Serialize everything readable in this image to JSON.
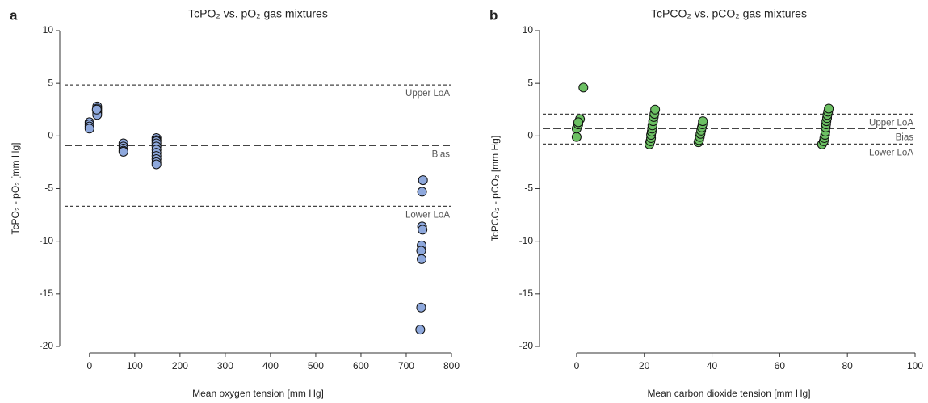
{
  "chart_data": [
    {
      "type": "scatter",
      "label": "a",
      "title": "TcPO₂ vs. pO₂ gas mixtures",
      "x_label": "Mean oxygen tension [mm Hg]",
      "y_label": "TcPO₂ - pO₂ [mm Hg]",
      "color": "#8ea8dc",
      "xlim": [
        -55,
        800
      ],
      "xticks": [
        0,
        100,
        200,
        300,
        400,
        500,
        600,
        700,
        800
      ],
      "ylim": [
        -20,
        10
      ],
      "yticks": [
        -20,
        -15,
        -10,
        -5,
        0,
        5,
        10
      ],
      "ref_lines": [
        {
          "label": "Upper LoA",
          "value": 4.85,
          "style": "dotted"
        },
        {
          "label": "Bias",
          "value": -0.92,
          "style": "dashed"
        },
        {
          "label": "Lower LoA",
          "value": -6.68,
          "style": "dotted"
        }
      ],
      "x": [
        0,
        0,
        0,
        0,
        17,
        17,
        17,
        17,
        17,
        16,
        75,
        75,
        75,
        75,
        75,
        148,
        148,
        148,
        148,
        148,
        148,
        148,
        148,
        148,
        148,
        148,
        737,
        735,
        735,
        736,
        734,
        733,
        734,
        733,
        731
      ],
      "values": [
        1.3,
        1.1,
        0.9,
        0.7,
        2.8,
        2.6,
        2.4,
        2.2,
        2.0,
        2.5,
        -0.7,
        -1.0,
        -1.2,
        -1.4,
        -1.5,
        -0.2,
        -0.4,
        -0.5,
        -0.7,
        -1.0,
        -1.3,
        -1.6,
        -1.9,
        -2.2,
        -2.5,
        -2.7,
        -4.2,
        -5.3,
        -8.6,
        -8.9,
        -10.4,
        -10.9,
        -11.7,
        -16.3,
        -18.4
      ]
    },
    {
      "type": "scatter",
      "label": "b",
      "title": "TcPCO₂ vs. pCO₂ gas mixtures",
      "x_label": "Mean carbon dioxide tension [mm Hg]",
      "y_label": "TcPCO₂ - pCO₂ [mm Hg]",
      "color": "#6cc063",
      "xlim": [
        -10,
        100
      ],
      "xticks": [
        0,
        20,
        40,
        60,
        80,
        100
      ],
      "ylim": [
        -20,
        10
      ],
      "yticks": [
        -20,
        -15,
        -10,
        -5,
        0,
        5,
        10
      ],
      "ref_lines": [
        {
          "label": "Upper LoA",
          "value": 2.07,
          "style": "dotted"
        },
        {
          "label": "Bias",
          "value": 0.69,
          "style": "dashed"
        },
        {
          "label": "Lower LoA",
          "value": -0.77,
          "style": "dotted"
        }
      ],
      "x": [
        0,
        0,
        0.5,
        1,
        0.5,
        2,
        21.5,
        21.8,
        22,
        22,
        22.2,
        22.3,
        22.4,
        22.6,
        22.8,
        23,
        23.2,
        36,
        36.2,
        36.4,
        36.6,
        36.8,
        37,
        37.2,
        37.3,
        72.5,
        73,
        73.2,
        73.4,
        73.5,
        73.6,
        73.7,
        73.8,
        74,
        74.1,
        74.3,
        74.5
      ],
      "values": [
        -0.1,
        0.7,
        1.1,
        1.6,
        1.3,
        4.6,
        -0.8,
        -0.5,
        -0.2,
        0.1,
        0.4,
        0.7,
        1.0,
        1.4,
        1.8,
        2.1,
        2.5,
        -0.6,
        -0.4,
        -0.1,
        0.2,
        0.5,
        0.8,
        1.1,
        1.4,
        -0.8,
        -0.5,
        -0.2,
        0.1,
        0.4,
        0.8,
        1.1,
        1.4,
        1.7,
        2.0,
        2.3,
        2.6
      ]
    }
  ]
}
